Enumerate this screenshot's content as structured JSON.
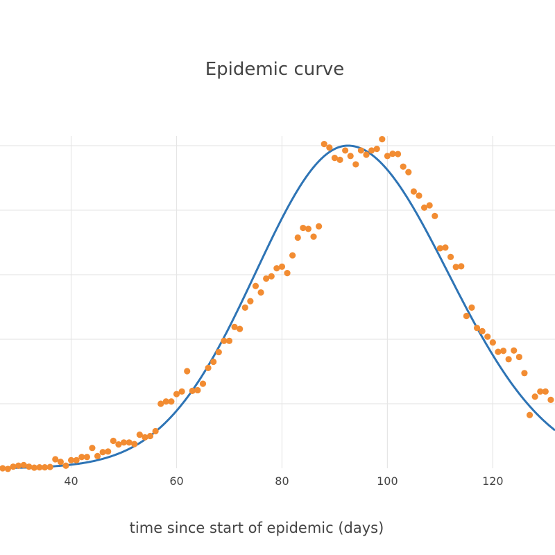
{
  "chart_data": {
    "type": "scatter",
    "title": "Epidemic curve",
    "xlabel": "time since start of epidemic (days)",
    "ylabel": "",
    "x_ticks": [
      40,
      60,
      80,
      100,
      120
    ],
    "xlim": [
      26.5,
      131.8
    ],
    "ylim": [
      0,
      1.03
    ],
    "y_gridlines": [
      0.2,
      0.4,
      0.6,
      0.8,
      1.0
    ],
    "grid": true,
    "legend": "none",
    "series": [
      {
        "mode": "lines",
        "color": "#2e74b5",
        "model": {
          "peak_x": 92.5,
          "peak_y": 1.0,
          "sigma_left": 17.5,
          "sigma_right": 19
        },
        "x_range": [
          26.5,
          131.8
        ]
      },
      {
        "mode": "markers",
        "color": "#f28c32",
        "points": [
          [
            27,
            0.0
          ],
          [
            28,
            -0.002
          ],
          [
            29,
            0.005
          ],
          [
            30,
            0.008
          ],
          [
            31,
            0.01
          ],
          [
            32,
            0.005
          ],
          [
            33,
            0.002
          ],
          [
            34,
            0.003
          ],
          [
            35,
            0.003
          ],
          [
            36,
            0.004
          ],
          [
            37,
            0.028
          ],
          [
            38,
            0.02
          ],
          [
            39,
            0.008
          ],
          [
            40,
            0.025
          ],
          [
            41,
            0.025
          ],
          [
            42,
            0.035
          ],
          [
            43,
            0.035
          ],
          [
            44,
            0.063
          ],
          [
            45,
            0.038
          ],
          [
            46,
            0.05
          ],
          [
            47,
            0.052
          ],
          [
            48,
            0.085
          ],
          [
            49,
            0.074
          ],
          [
            50,
            0.08
          ],
          [
            51,
            0.08
          ],
          [
            52,
            0.075
          ],
          [
            53,
            0.104
          ],
          [
            54,
            0.096
          ],
          [
            55,
            0.1
          ],
          [
            56,
            0.115
          ],
          [
            57,
            0.2
          ],
          [
            58,
            0.207
          ],
          [
            59,
            0.207
          ],
          [
            60,
            0.23
          ],
          [
            61,
            0.238
          ],
          [
            62,
            0.301
          ],
          [
            63,
            0.24
          ],
          [
            64,
            0.242
          ],
          [
            65,
            0.262
          ],
          [
            66,
            0.311
          ],
          [
            67,
            0.33
          ],
          [
            68,
            0.36
          ],
          [
            69,
            0.395
          ],
          [
            70,
            0.395
          ],
          [
            71,
            0.438
          ],
          [
            72,
            0.432
          ],
          [
            73,
            0.498
          ],
          [
            74,
            0.518
          ],
          [
            75,
            0.565
          ],
          [
            76,
            0.545
          ],
          [
            77,
            0.588
          ],
          [
            78,
            0.595
          ],
          [
            79,
            0.62
          ],
          [
            80,
            0.625
          ],
          [
            81,
            0.605
          ],
          [
            82,
            0.66
          ],
          [
            83,
            0.715
          ],
          [
            84,
            0.745
          ],
          [
            85,
            0.742
          ],
          [
            86,
            0.718
          ],
          [
            87,
            0.75
          ],
          [
            88,
            1.005
          ],
          [
            89,
            0.994
          ],
          [
            90,
            0.962
          ],
          [
            91,
            0.956
          ],
          [
            92,
            0.985
          ],
          [
            93,
            0.968
          ],
          [
            94,
            0.942
          ],
          [
            95,
            0.985
          ],
          [
            96,
            0.972
          ],
          [
            97,
            0.985
          ],
          [
            98,
            0.99
          ],
          [
            99,
            1.02
          ],
          [
            100,
            0.968
          ],
          [
            101,
            0.975
          ],
          [
            102,
            0.974
          ],
          [
            103,
            0.935
          ],
          [
            104,
            0.918
          ],
          [
            105,
            0.858
          ],
          [
            106,
            0.845
          ],
          [
            107,
            0.808
          ],
          [
            108,
            0.815
          ],
          [
            109,
            0.782
          ],
          [
            110,
            0.682
          ],
          [
            111,
            0.684
          ],
          [
            112,
            0.655
          ],
          [
            113,
            0.624
          ],
          [
            114,
            0.626
          ],
          [
            115,
            0.472
          ],
          [
            116,
            0.498
          ],
          [
            117,
            0.435
          ],
          [
            118,
            0.425
          ],
          [
            119,
            0.408
          ],
          [
            120,
            0.39
          ],
          [
            121,
            0.361
          ],
          [
            122,
            0.364
          ],
          [
            123,
            0.338
          ],
          [
            124,
            0.365
          ],
          [
            125,
            0.345
          ],
          [
            126,
            0.295
          ],
          [
            127,
            0.165
          ],
          [
            128,
            0.222
          ],
          [
            129,
            0.238
          ],
          [
            130,
            0.238
          ],
          [
            131,
            0.212
          ]
        ]
      }
    ]
  }
}
